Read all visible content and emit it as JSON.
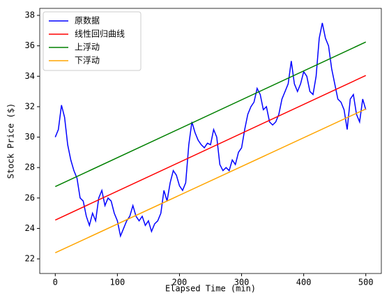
{
  "chart_data": {
    "type": "line",
    "xlabel": "Elapsed Time (min)",
    "ylabel": "Stock Price ($)",
    "xlim": [
      -25,
      525
    ],
    "ylim": [
      21.04,
      38.46
    ],
    "xticks": [
      0,
      100,
      200,
      300,
      400,
      500
    ],
    "yticks": [
      22,
      24,
      26,
      28,
      30,
      32,
      34,
      36,
      38
    ],
    "grid": false,
    "legend": "upper left",
    "series": [
      {
        "name": "原数据",
        "color": "#0000ff",
        "x": [
          0,
          5,
          10,
          15,
          20,
          25,
          30,
          35,
          40,
          45,
          50,
          55,
          60,
          65,
          70,
          75,
          80,
          85,
          90,
          95,
          100,
          105,
          110,
          115,
          120,
          125,
          130,
          135,
          140,
          145,
          150,
          155,
          160,
          165,
          170,
          175,
          180,
          185,
          190,
          195,
          200,
          205,
          210,
          215,
          220,
          225,
          230,
          235,
          240,
          245,
          250,
          255,
          260,
          265,
          270,
          275,
          280,
          285,
          290,
          295,
          300,
          305,
          310,
          315,
          320,
          325,
          330,
          335,
          340,
          345,
          350,
          355,
          360,
          365,
          370,
          375,
          380,
          385,
          390,
          395,
          400,
          405,
          410,
          415,
          420,
          425,
          430,
          435,
          440,
          445,
          450,
          455,
          460,
          465,
          470,
          475,
          480,
          485,
          490,
          495,
          500
        ],
        "values": [
          30.0,
          30.5,
          32.1,
          31.3,
          29.5,
          28.5,
          27.8,
          27.3,
          26.0,
          25.8,
          24.8,
          24.2,
          25.0,
          24.5,
          26.0,
          26.5,
          25.5,
          26.0,
          25.8,
          25.0,
          24.5,
          23.5,
          24.0,
          24.5,
          24.8,
          25.5,
          24.8,
          24.5,
          24.8,
          24.2,
          24.5,
          23.8,
          24.3,
          24.5,
          25.0,
          26.5,
          25.8,
          27.0,
          27.8,
          27.5,
          26.8,
          26.5,
          27.0,
          29.5,
          31.0,
          30.3,
          29.8,
          29.5,
          29.3,
          29.6,
          29.5,
          30.5,
          30.0,
          28.2,
          27.8,
          28.0,
          27.8,
          28.5,
          28.2,
          29.0,
          29.3,
          30.5,
          31.5,
          32.0,
          32.3,
          33.2,
          32.8,
          31.8,
          32.0,
          31.0,
          30.8,
          31.0,
          31.5,
          32.5,
          33.0,
          33.5,
          35.0,
          33.5,
          33.0,
          33.5,
          34.3,
          34.0,
          33.0,
          32.8,
          34.0,
          36.5,
          37.5,
          36.5,
          36.0,
          34.5,
          33.5,
          32.5,
          32.3,
          31.8,
          30.5,
          32.5,
          32.8,
          31.5,
          31.0,
          32.5,
          31.8
        ]
      },
      {
        "name": "线性回归曲线",
        "color": "#ff0000",
        "x": [
          0,
          500
        ],
        "values": [
          24.55,
          34.05
        ]
      },
      {
        "name": "上浮动",
        "color": "#008000",
        "x": [
          0,
          500
        ],
        "values": [
          26.75,
          36.25
        ]
      },
      {
        "name": "下浮动",
        "color": "#ffa500",
        "x": [
          0,
          500
        ],
        "values": [
          22.4,
          31.85
        ]
      }
    ]
  }
}
